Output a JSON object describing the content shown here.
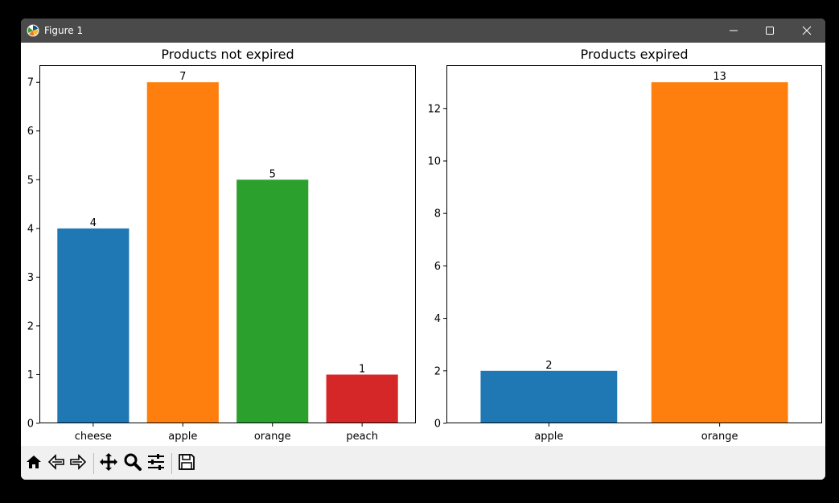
{
  "window": {
    "title": "Figure 1",
    "icons": [
      "matplotlib-icon",
      "minimize-icon",
      "maximize-icon",
      "close-icon"
    ]
  },
  "toolbar": {
    "tools": [
      "home-icon",
      "back-arrow-icon",
      "forward-arrow-icon",
      "pan-icon",
      "zoom-icon",
      "configure-subplots-icon",
      "save-icon"
    ]
  },
  "chart_data": [
    {
      "type": "bar",
      "title": "Products not expired",
      "categories": [
        "cheese",
        "apple",
        "orange",
        "peach"
      ],
      "values": [
        4,
        7,
        5,
        1
      ],
      "data_labels": [
        "4",
        "7",
        "5",
        "1"
      ],
      "colors": [
        "#1f77b4",
        "#ff7f0e",
        "#2ca02c",
        "#d62728"
      ],
      "yticks": [
        "0",
        "1",
        "2",
        "3",
        "4",
        "5",
        "6",
        "7"
      ],
      "ylim": [
        0,
        7.35
      ],
      "xlabel": "",
      "ylabel": "",
      "grid": false
    },
    {
      "type": "bar",
      "title": "Products expired",
      "categories": [
        "apple",
        "orange"
      ],
      "values": [
        2,
        13
      ],
      "data_labels": [
        "2",
        "13"
      ],
      "colors": [
        "#1f77b4",
        "#ff7f0e"
      ],
      "yticks": [
        "0",
        "2",
        "4",
        "6",
        "8",
        "10",
        "12"
      ],
      "ylim": [
        0,
        13.65
      ],
      "xlabel": "",
      "ylabel": "",
      "grid": false
    }
  ]
}
